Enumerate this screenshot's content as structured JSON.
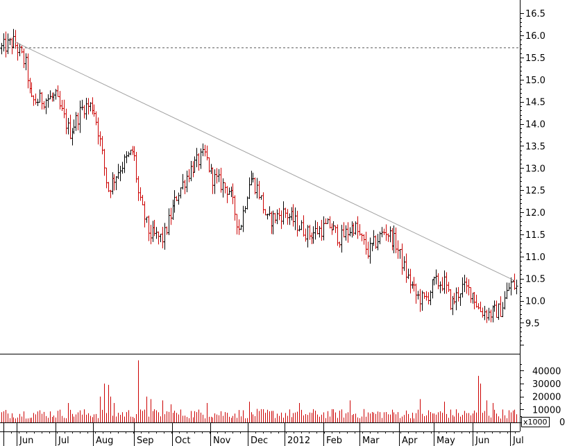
{
  "chart_data": [
    {
      "type": "ohlc",
      "title": "",
      "xlabel": "",
      "ylabel": "",
      "ylim": [
        8.8,
        16.8
      ],
      "y_ticks": [
        "9.5",
        "10.0",
        "10.5",
        "11.0",
        "11.5",
        "12.0",
        "12.5",
        "13.0",
        "13.5",
        "14.0",
        "14.5",
        "15.0",
        "15.5",
        "16.0",
        "16.5"
      ],
      "x_labels": [
        "Jun",
        "Jul",
        "Aug",
        "Sep",
        "Oct",
        "Nov",
        "Dec",
        "2012",
        "Feb",
        "Mar",
        "Apr",
        "May",
        "Jun",
        "Jul"
      ],
      "up_color": "#000000",
      "down_color": "#cc0000",
      "trendline": {
        "start": [
          "May 2011",
          15.85
        ],
        "end": [
          "Jul 2012",
          10.45
        ],
        "color": "#a0a0a0"
      },
      "reference_line": {
        "value": 15.72,
        "style": "dashed",
        "color": "#555555"
      },
      "anchors": [
        [
          0,
          15.7
        ],
        [
          20,
          15.85
        ],
        [
          38,
          15.3
        ],
        [
          44,
          14.5
        ],
        [
          80,
          14.6
        ],
        [
          100,
          13.8
        ],
        [
          120,
          14.4
        ],
        [
          134,
          14.4
        ],
        [
          142,
          13.8
        ],
        [
          155,
          12.5
        ],
        [
          172,
          13.0
        ],
        [
          192,
          13.4
        ],
        [
          200,
          12.3
        ],
        [
          215,
          11.5
        ],
        [
          235,
          11.4
        ],
        [
          255,
          12.4
        ],
        [
          275,
          13.0
        ],
        [
          295,
          13.3
        ],
        [
          305,
          12.8
        ],
        [
          330,
          12.5
        ],
        [
          345,
          11.6
        ],
        [
          360,
          12.8
        ],
        [
          372,
          12.5
        ],
        [
          385,
          11.8
        ],
        [
          410,
          12.0
        ],
        [
          430,
          11.7
        ],
        [
          445,
          11.5
        ],
        [
          460,
          11.6
        ],
        [
          475,
          11.7
        ],
        [
          490,
          11.4
        ],
        [
          510,
          11.7
        ],
        [
          530,
          11.1
        ],
        [
          555,
          11.6
        ],
        [
          570,
          11.3
        ],
        [
          585,
          10.6
        ],
        [
          600,
          10.1
        ],
        [
          612,
          10.0
        ],
        [
          625,
          10.4
        ],
        [
          640,
          10.4
        ],
        [
          650,
          9.9
        ],
        [
          665,
          10.3
        ],
        [
          680,
          10.2
        ],
        [
          690,
          9.8
        ],
        [
          705,
          9.7
        ],
        [
          722,
          9.8
        ],
        [
          735,
          10.4
        ],
        [
          745,
          10.3
        ]
      ]
    },
    {
      "type": "bar",
      "title": "",
      "ylabel": "",
      "unit_label": "x1000",
      "ylim": [
        0,
        52000
      ],
      "y_ticks": [
        "0",
        "10000",
        "20000",
        "30000",
        "40000"
      ],
      "bar_color": "#cc0000",
      "baseline_level": 7500,
      "spikes": [
        [
          98,
          15000
        ],
        [
          145,
          20000
        ],
        [
          150,
          30000
        ],
        [
          155,
          29000
        ],
        [
          160,
          20000
        ],
        [
          165,
          15000
        ],
        [
          198,
          48000
        ],
        [
          200,
          39000
        ],
        [
          210,
          20000
        ],
        [
          218,
          18000
        ],
        [
          235,
          17000
        ],
        [
          245,
          14000
        ],
        [
          297,
          15000
        ],
        [
          358,
          16000
        ],
        [
          430,
          15000
        ],
        [
          505,
          17000
        ],
        [
          605,
          18000
        ],
        [
          640,
          16000
        ],
        [
          690,
          36000
        ],
        [
          692,
          30000
        ],
        [
          700,
          17000
        ],
        [
          710,
          15000
        ]
      ]
    }
  ]
}
